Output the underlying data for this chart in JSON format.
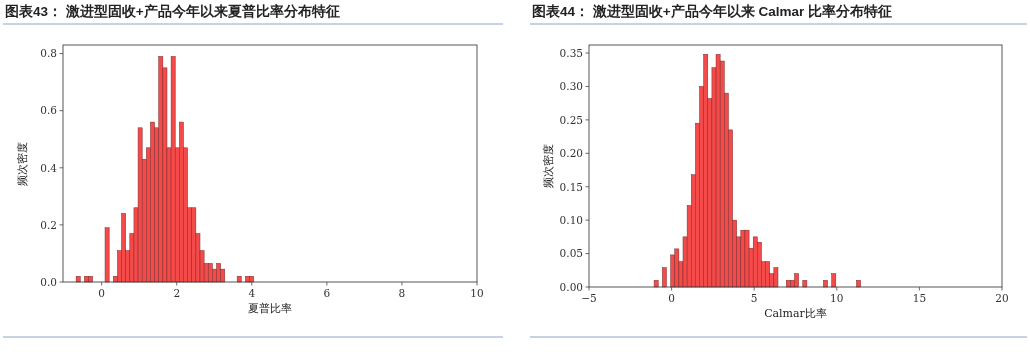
{
  "chart_data": [
    {
      "type": "histogram",
      "title": "图表43：  激进型固收+产品今年以来夏普比率分布特征",
      "xlabel": "夏普比率",
      "ylabel": "频次密度",
      "color": "#f44a4a",
      "bins": [
        -0.68,
        -0.57,
        -0.46,
        -0.35,
        -0.24,
        -0.13,
        -0.02,
        0.09,
        0.2,
        0.31,
        0.42,
        0.53,
        0.64,
        0.75,
        0.86,
        0.97,
        1.08,
        1.19,
        1.3,
        1.41,
        1.52,
        1.63,
        1.74,
        1.85,
        1.96,
        2.07,
        2.18,
        2.29,
        2.4,
        2.51,
        2.62,
        2.73,
        2.84,
        2.95,
        3.06,
        3.17,
        3.28,
        3.39,
        3.5,
        3.61,
        3.72,
        3.83,
        3.94,
        4.05
      ],
      "values": [
        0.02,
        0,
        0.02,
        0.02,
        0,
        0,
        0,
        0.19,
        0,
        0.02,
        0.11,
        0.24,
        0.11,
        0.17,
        0.26,
        0.54,
        0.43,
        0.47,
        0.56,
        0.54,
        0.79,
        0.75,
        0.47,
        0.79,
        0.47,
        0.56,
        0.47,
        0.26,
        0.26,
        0.17,
        0.11,
        0.065,
        0.065,
        0.045,
        0.065,
        0.045,
        0,
        0,
        0,
        0.02,
        0,
        0.02,
        0.02
      ],
      "xlim": [
        -1.03,
        10
      ],
      "ylim": [
        0,
        0.83
      ],
      "xticks": [
        0,
        2,
        4,
        6,
        8,
        10
      ],
      "yticks": [
        {
          "value": 0,
          "label": "0.0"
        },
        {
          "value": 0.2,
          "label": "0.2"
        },
        {
          "value": 0.4,
          "label": "0.4"
        },
        {
          "value": 0.6,
          "label": "0.6"
        },
        {
          "value": 0.8,
          "label": "0.8"
        }
      ],
      "grid": false
    },
    {
      "type": "histogram",
      "title": "图表44：  激进型固收+产品今年以来 Calmar 比率分布特征",
      "xlabel": "Calmar比率",
      "ylabel": "频次密度",
      "color": "#f44a4a",
      "bins": [
        -1.06,
        -0.81,
        -0.56,
        -0.31,
        -0.06,
        0.19,
        0.44,
        0.69,
        0.94,
        1.19,
        1.44,
        1.69,
        1.94,
        2.19,
        2.44,
        2.69,
        2.94,
        3.19,
        3.44,
        3.69,
        3.94,
        4.19,
        4.44,
        4.69,
        4.94,
        5.19,
        5.44,
        5.69,
        5.94,
        6.19,
        6.44,
        6.69,
        6.94,
        7.19,
        7.44,
        7.69,
        7.94,
        8.19,
        8.44,
        8.69,
        8.94,
        9.19,
        9.44,
        9.69,
        9.94,
        10.19,
        10.44,
        10.69,
        10.94,
        11.19,
        11.44
      ],
      "values": [
        0.01,
        0,
        0.029,
        0,
        0.048,
        0.057,
        0.038,
        0.075,
        0.122,
        0.168,
        0.245,
        0.3,
        0.348,
        0.282,
        0.328,
        0.348,
        0.338,
        0.29,
        0.235,
        0.1,
        0.075,
        0.085,
        0.085,
        0.058,
        0.075,
        0.067,
        0.038,
        0.038,
        0.02,
        0.029,
        0,
        0,
        0.01,
        0.01,
        0.02,
        0,
        0.01,
        0,
        0,
        0,
        0,
        0.01,
        0,
        0.02,
        0,
        0,
        0,
        0,
        0,
        0.01
      ],
      "xlim": [
        -5,
        20
      ],
      "ylim": [
        0,
        0.362
      ],
      "xticks": [
        {
          "value": -5,
          "label": "−5"
        },
        0,
        5,
        10,
        15,
        20
      ],
      "yticks": [
        {
          "value": 0,
          "label": "0.00"
        },
        {
          "value": 0.05,
          "label": "0.05"
        },
        {
          "value": 0.1,
          "label": "0.10"
        },
        {
          "value": 0.15,
          "label": "0.15"
        },
        {
          "value": 0.2,
          "label": "0.20"
        },
        {
          "value": 0.25,
          "label": "0.25"
        },
        {
          "value": 0.3,
          "label": "0.30"
        },
        {
          "value": 0.35,
          "label": "0.35"
        }
      ],
      "grid": false
    }
  ]
}
